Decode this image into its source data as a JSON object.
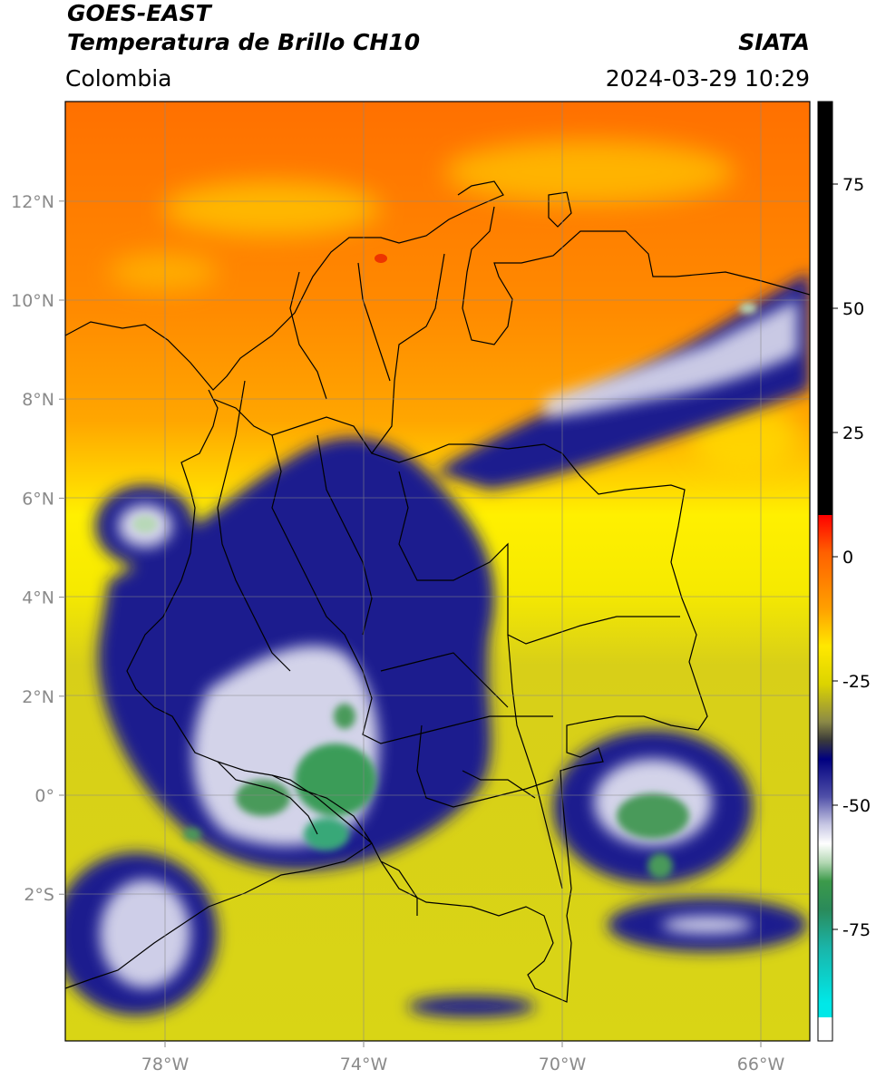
{
  "header": {
    "satellite": "GOES-EAST",
    "product": "Temperatura de Brillo CH10",
    "region": "Colombia",
    "agency": "SIATA",
    "datetime": "2024-03-29 10:29"
  },
  "map": {
    "lon_ticks": [
      {
        "value": -78,
        "label": "78°W"
      },
      {
        "value": -74,
        "label": "74°W"
      },
      {
        "value": -70,
        "label": "70°W"
      },
      {
        "value": -66,
        "label": "66°W"
      }
    ],
    "lat_ticks": [
      {
        "value": 12,
        "label": "12°N"
      },
      {
        "value": 10,
        "label": "10°N"
      },
      {
        "value": 8,
        "label": "8°N"
      },
      {
        "value": 6,
        "label": "6°N"
      },
      {
        "value": 4,
        "label": "4°N"
      },
      {
        "value": 2,
        "label": "2°N"
      },
      {
        "value": 0,
        "label": "0°"
      },
      {
        "value": -2,
        "label": "2°S"
      }
    ],
    "colors": {
      "warm": "#ff7a00",
      "mid": "#ffee00",
      "olive": "#c8c020",
      "deep": "#1a1a8a",
      "cold": "#ffffff",
      "green": "#3a9a50"
    }
  },
  "colorbar": {
    "ticks": [
      {
        "value": 75,
        "label": "75"
      },
      {
        "value": 50,
        "label": "50"
      },
      {
        "value": 25,
        "label": "25"
      },
      {
        "value": 0,
        "label": "0"
      },
      {
        "value": -25,
        "label": "-25"
      },
      {
        "value": -50,
        "label": "-50"
      },
      {
        "value": -75,
        "label": "-75"
      }
    ]
  }
}
